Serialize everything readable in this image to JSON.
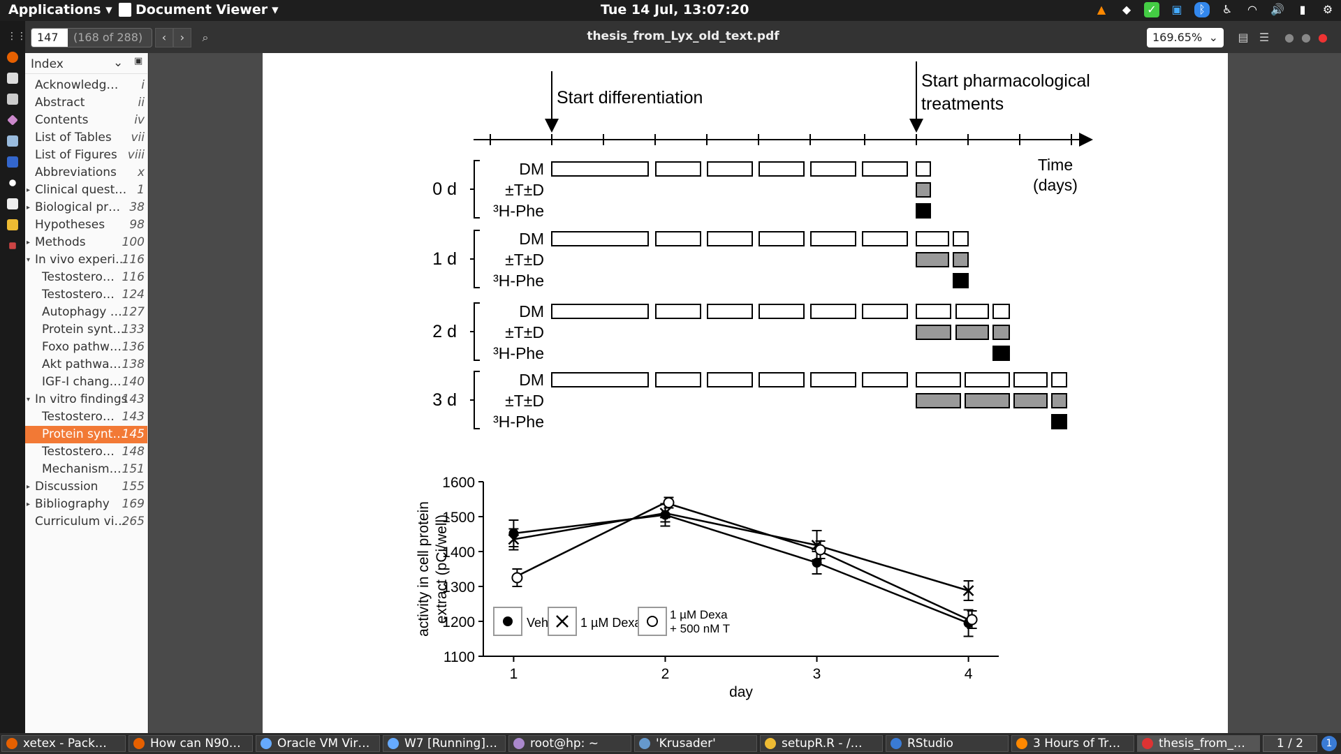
{
  "topbar": {
    "apps_label": "Applications",
    "app_name": "Document Viewer",
    "clock": "Tue 14 Jul, 13:07:20"
  },
  "toolbar": {
    "page_current": "147",
    "page_total": "(168 of 288)",
    "doc_title": "thesis_from_Lyx_old_text.pdf",
    "zoom": "169.65%"
  },
  "sidebar": {
    "header": "Index",
    "items": [
      {
        "label": "Acknowledg…",
        "page": "i"
      },
      {
        "label": "Abstract",
        "page": "ii"
      },
      {
        "label": "Contents",
        "page": "iv"
      },
      {
        "label": "List of Tables",
        "page": "vii"
      },
      {
        "label": "List of Figures",
        "page": "viii"
      },
      {
        "label": "Abbreviations",
        "page": "x"
      },
      {
        "label": "Clinical quest…",
        "page": "1"
      },
      {
        "label": "Biological pr…",
        "page": "38"
      },
      {
        "label": "Hypotheses",
        "page": "98"
      },
      {
        "label": "Methods",
        "page": "100"
      },
      {
        "label": "In vivo experi…",
        "page": "116"
      },
      {
        "label": "Testostero…",
        "page": "116"
      },
      {
        "label": "Testostero…",
        "page": "124"
      },
      {
        "label": "Autophagy …",
        "page": "127"
      },
      {
        "label": "Protein synt…",
        "page": "133"
      },
      {
        "label": "Foxo pathw…",
        "page": "136"
      },
      {
        "label": "Akt pathwa…",
        "page": "138"
      },
      {
        "label": "IGF-I chang…",
        "page": "140"
      },
      {
        "label": "In vitro findings",
        "page": "143"
      },
      {
        "label": "Testostero…",
        "page": "143"
      },
      {
        "label": "Protein synt…",
        "page": "145"
      },
      {
        "label": "Testostero…",
        "page": "148"
      },
      {
        "label": "Mechanism…",
        "page": "151"
      },
      {
        "label": "Discussion",
        "page": "155"
      },
      {
        "label": "Bibliography",
        "page": "169"
      },
      {
        "label": "Curriculum vi…",
        "page": "265"
      }
    ]
  },
  "schematic": {
    "start_diff": "Start differentiation",
    "start_pharm_1": "Start pharmacological",
    "start_pharm_2": "treatments",
    "time_1": "Time",
    "time_2": "(days)",
    "groups": [
      "0 d",
      "1 d",
      "2 d",
      "3 d"
    ],
    "row_dm": "DM",
    "row_td": "±T±D",
    "row_phe": "³H-Phe"
  },
  "chart_data": {
    "type": "line",
    "xlabel": "day",
    "ylabel": "activity in cell protein extract (pCi/well)",
    "ylabel_lines": [
      "activity in cell protein",
      "extract (pCi/well)"
    ],
    "x": [
      1,
      2,
      3,
      4
    ],
    "ylim": [
      1100,
      1600
    ],
    "yticks": [
      1100,
      1200,
      1300,
      1400,
      1500,
      1600
    ],
    "series": [
      {
        "name": "Veh",
        "marker": "filled-circle",
        "values": [
          1452,
          1505,
          1368,
          1195
        ],
        "errors": [
          38,
          32,
          32,
          38
        ]
      },
      {
        "name": "1 µM Dexa",
        "marker": "cross",
        "values": [
          1435,
          1510,
          1418,
          1288
        ],
        "errors": [
          30,
          25,
          42,
          28
        ]
      },
      {
        "name": "1 µM Dexa + 500 nM T",
        "marker": "open-circle",
        "values": [
          1325,
          1540,
          1405,
          1205
        ],
        "errors": [
          25,
          15,
          25,
          25
        ]
      }
    ],
    "legend_labels": [
      "Veh",
      "1 µM Dexa",
      "1 µM Dexa",
      "+ 500 nM T"
    ]
  },
  "taskbar": {
    "tasks": [
      "xetex - Pack…",
      "How can N90…",
      "Oracle VM Vir…",
      "W7 [Running]…",
      "root@hp: ~",
      "'Krusader'",
      "setupR.R - /…",
      "RStudio",
      "3 Hours of Tr…",
      "thesis_from_…"
    ],
    "workspace": "1 / 2"
  }
}
